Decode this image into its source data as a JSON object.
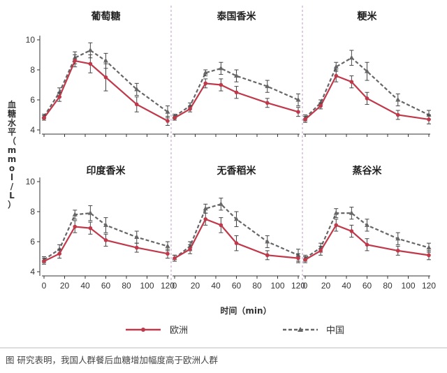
{
  "figure_caption": "图  研究表明，我国人群餐后血糖增加幅度高于欧洲人群",
  "chart_data": {
    "type": "line",
    "ylabel": "血糖水平（mmol/L）",
    "xlabel": "时间（min）",
    "x_ticks": [
      0,
      20,
      40,
      60,
      80,
      100,
      120
    ],
    "y_ticks": [
      4,
      6,
      8,
      10
    ],
    "xlim": [
      0,
      120
    ],
    "ylim": [
      4,
      10
    ],
    "legend": {
      "position": "bottom",
      "entries": [
        "欧洲",
        "中国"
      ]
    },
    "series_colors": {
      "欧洲": "#c0394b",
      "中国": "#666666"
    },
    "panels": [
      {
        "title": "葡萄糖",
        "x": [
          0,
          15,
          30,
          45,
          60,
          90,
          120
        ],
        "europe": [
          4.8,
          6.2,
          8.6,
          8.4,
          7.5,
          5.7,
          4.6
        ],
        "europe_err": [
          0.15,
          0.3,
          0.4,
          0.6,
          0.9,
          0.5,
          0.3
        ],
        "china": [
          4.9,
          6.5,
          8.8,
          9.3,
          8.6,
          6.7,
          5.2
        ],
        "china_err": [
          0.15,
          0.3,
          0.4,
          0.5,
          0.5,
          0.4,
          0.4
        ]
      },
      {
        "title": "泰国香米",
        "x": [
          0,
          15,
          30,
          45,
          60,
          90,
          120
        ],
        "europe": [
          4.8,
          5.4,
          7.1,
          7.0,
          6.5,
          5.8,
          5.2
        ],
        "europe_err": [
          0.15,
          0.2,
          0.3,
          0.4,
          0.4,
          0.3,
          0.3
        ],
        "china": [
          4.9,
          5.6,
          7.8,
          8.1,
          7.6,
          6.9,
          6.0
        ],
        "china_err": [
          0.15,
          0.2,
          0.2,
          0.4,
          0.4,
          0.4,
          0.4
        ]
      },
      {
        "title": "粳米",
        "x": [
          0,
          15,
          30,
          45,
          60,
          90,
          120
        ],
        "europe": [
          4.7,
          5.6,
          7.6,
          7.2,
          6.1,
          5.0,
          4.7
        ],
        "europe_err": [
          0.2,
          0.2,
          0.4,
          0.4,
          0.4,
          0.3,
          0.3
        ],
        "china": [
          4.8,
          5.8,
          8.2,
          8.8,
          7.9,
          6.0,
          5.0
        ],
        "china_err": [
          0.2,
          0.2,
          0.3,
          0.5,
          0.6,
          0.4,
          0.3
        ]
      },
      {
        "title": "印度香米",
        "x": [
          0,
          15,
          30,
          45,
          60,
          90,
          120
        ],
        "europe": [
          4.7,
          5.2,
          7.0,
          6.9,
          6.1,
          5.6,
          5.2
        ],
        "europe_err": [
          0.2,
          0.3,
          0.4,
          0.4,
          0.4,
          0.3,
          0.3
        ],
        "china": [
          4.8,
          5.5,
          7.8,
          7.9,
          7.1,
          6.3,
          5.7
        ],
        "china_err": [
          0.2,
          0.3,
          0.3,
          0.5,
          0.5,
          0.4,
          0.3
        ]
      },
      {
        "title": "无香稻米",
        "x": [
          0,
          15,
          30,
          45,
          60,
          90,
          120
        ],
        "europe": [
          4.9,
          5.5,
          7.5,
          7.1,
          5.9,
          5.1,
          4.9
        ],
        "europe_err": [
          0.2,
          0.3,
          0.4,
          0.5,
          0.5,
          0.3,
          0.3
        ],
        "china": [
          4.9,
          5.7,
          8.2,
          8.5,
          7.5,
          6.0,
          5.1
        ],
        "china_err": [
          0.2,
          0.3,
          0.3,
          0.4,
          0.5,
          0.4,
          0.4
        ]
      },
      {
        "title": "蒸谷米",
        "x": [
          0,
          15,
          30,
          45,
          60,
          90,
          120
        ],
        "europe": [
          4.8,
          5.4,
          7.1,
          6.7,
          5.8,
          5.4,
          5.1
        ],
        "europe_err": [
          0.2,
          0.3,
          0.4,
          0.4,
          0.4,
          0.3,
          0.3
        ],
        "china": [
          4.9,
          5.6,
          7.9,
          7.9,
          7.1,
          6.2,
          5.6
        ],
        "china_err": [
          0.2,
          0.3,
          0.3,
          0.4,
          0.4,
          0.4,
          0.3
        ]
      }
    ]
  }
}
